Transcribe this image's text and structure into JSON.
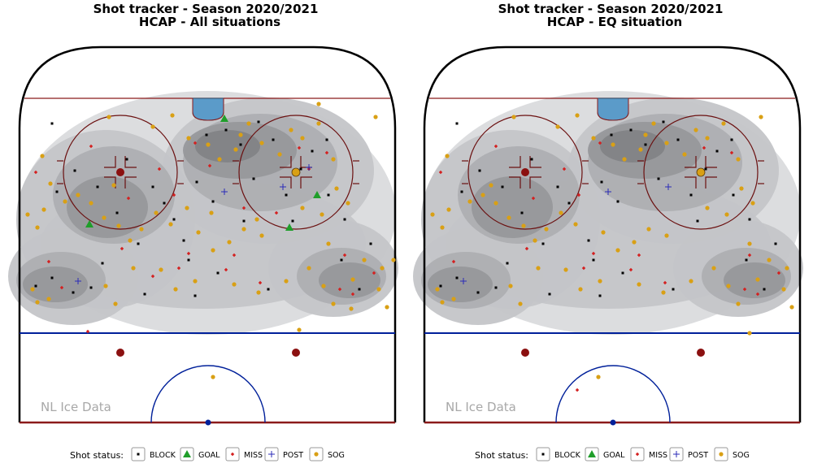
{
  "chart_data": [
    {
      "type": "scatter",
      "title_line1": "Shot tracker  -  Season 2020/2021",
      "title_line2": "HCAP  -  All situations",
      "watermark": "NL Ice Data",
      "series": [
        {
          "name": "BLOCK",
          "points": [
            [
              64,
              152
            ],
            [
              120,
              230
            ],
            [
              144,
              262
            ],
            [
              170,
              300
            ],
            [
              226,
              296
            ],
            [
              242,
              224
            ],
            [
              254,
              166
            ],
            [
              278,
              160
            ],
            [
              296,
              178
            ],
            [
              318,
              150
            ],
            [
              336,
              172
            ],
            [
              352,
              240
            ],
            [
              370,
              208
            ],
            [
              384,
              186
            ],
            [
              402,
              172
            ],
            [
              420,
              320
            ],
            [
              442,
              356
            ],
            [
              456,
              300
            ],
            [
              64,
              342
            ],
            [
              90,
              360
            ],
            [
              44,
              352
            ],
            [
              126,
              324
            ],
            [
              112,
              354
            ],
            [
              178,
              362
            ],
            [
              232,
              320
            ],
            [
              262,
              248
            ],
            [
              312,
              220
            ],
            [
              268,
              336
            ],
            [
              240,
              364
            ],
            [
              360,
              272
            ],
            [
              404,
              240
            ],
            [
              424,
              270
            ],
            [
              92,
              210
            ],
            [
              70,
              236
            ],
            [
              188,
              230
            ],
            [
              202,
              250
            ],
            [
              156,
              196
            ],
            [
              330,
              356
            ],
            [
              300,
              272
            ],
            [
              214,
              270
            ]
          ]
        },
        {
          "name": "GOAL",
          "points": [
            [
              276,
              146
            ],
            [
              390,
              240
            ],
            [
              356,
              280
            ],
            [
              110,
              276
            ]
          ]
        },
        {
          "name": "MISS",
          "points": [
            [
              44,
              212
            ],
            [
              112,
              180
            ],
            [
              158,
              244
            ],
            [
              196,
              208
            ],
            [
              214,
              240
            ],
            [
              232,
              312
            ],
            [
              220,
              330
            ],
            [
              278,
              332
            ],
            [
              288,
              314
            ],
            [
              150,
              306
            ],
            [
              320,
              348
            ],
            [
              402,
              188
            ],
            [
              418,
              356
            ],
            [
              434,
              362
            ],
            [
              460,
              336
            ],
            [
              424,
              314
            ],
            [
              108,
              408
            ],
            [
              368,
              182
            ],
            [
              240,
              176
            ],
            [
              60,
              322
            ],
            [
              380,
              208
            ],
            [
              300,
              256
            ],
            [
              188,
              340
            ],
            [
              76,
              354
            ],
            [
              340,
              262
            ],
            [
              258,
              204
            ]
          ]
        },
        {
          "name": "POST",
          "points": [
            [
              380,
              206
            ],
            [
              348,
              230
            ],
            [
              276,
              236
            ],
            [
              96,
              346
            ]
          ]
        },
        {
          "name": "SOG",
          "points": [
            [
              134,
              144
            ],
            [
              188,
              156
            ],
            [
              212,
              142
            ],
            [
              232,
              170
            ],
            [
              256,
              178
            ],
            [
              270,
              196
            ],
            [
              290,
              184
            ],
            [
              296,
              166
            ],
            [
              306,
              152
            ],
            [
              322,
              176
            ],
            [
              344,
              190
            ],
            [
              358,
              160
            ],
            [
              372,
              170
            ],
            [
              392,
              152
            ],
            [
              410,
              196
            ],
            [
              414,
              232
            ],
            [
              428,
              250
            ],
            [
              396,
              264
            ],
            [
              372,
              256
            ],
            [
              322,
              290
            ],
            [
              300,
              282
            ],
            [
              282,
              298
            ],
            [
              262,
              308
            ],
            [
              244,
              286
            ],
            [
              210,
              276
            ],
            [
              192,
              262
            ],
            [
              174,
              282
            ],
            [
              160,
              296
            ],
            [
              146,
              278
            ],
            [
              128,
              268
            ],
            [
              112,
              250
            ],
            [
              96,
              240
            ],
            [
              80,
              248
            ],
            [
              54,
              258
            ],
            [
              34,
              264
            ],
            [
              46,
              280
            ],
            [
              52,
              192
            ],
            [
              164,
              330
            ],
            [
              198,
              332
            ],
            [
              216,
              356
            ],
            [
              240,
              346
            ],
            [
              288,
              350
            ],
            [
              318,
              360
            ],
            [
              352,
              346
            ],
            [
              380,
              330
            ],
            [
              398,
              352
            ],
            [
              410,
              374
            ],
            [
              434,
              344
            ],
            [
              448,
              320
            ],
            [
              470,
              330
            ],
            [
              466,
              356
            ],
            [
              476,
              378
            ],
            [
              484,
              320
            ],
            [
              432,
              380
            ],
            [
              40,
              356
            ],
            [
              46,
              372
            ],
            [
              60,
              368
            ],
            [
              130,
              352
            ],
            [
              142,
              374
            ],
            [
              262,
              464
            ],
            [
              368,
              406
            ],
            [
              462,
              144
            ],
            [
              392,
              128
            ],
            [
              260,
              262
            ],
            [
              140,
              228
            ],
            [
              62,
              226
            ],
            [
              316,
              270
            ],
            [
              404,
              300
            ],
            [
              230,
              256
            ]
          ]
        }
      ]
    },
    {
      "type": "scatter",
      "title_line1": "Shot tracker  -  Season 2020/2021",
      "title_line2": "HCAP  -  EQ situation",
      "watermark": "NL Ice Data",
      "series": [
        {
          "name": "BLOCK",
          "points": [
            [
              64,
              152
            ],
            [
              120,
              230
            ],
            [
              144,
              262
            ],
            [
              170,
              300
            ],
            [
              226,
              296
            ],
            [
              242,
              224
            ],
            [
              254,
              166
            ],
            [
              278,
              160
            ],
            [
              296,
              178
            ],
            [
              318,
              150
            ],
            [
              336,
              172
            ],
            [
              352,
              240
            ],
            [
              370,
              208
            ],
            [
              384,
              186
            ],
            [
              402,
              172
            ],
            [
              420,
              320
            ],
            [
              442,
              356
            ],
            [
              456,
              300
            ],
            [
              64,
              342
            ],
            [
              90,
              360
            ],
            [
              44,
              352
            ],
            [
              126,
              324
            ],
            [
              112,
              354
            ],
            [
              178,
              362
            ],
            [
              232,
              320
            ],
            [
              262,
              248
            ],
            [
              312,
              220
            ],
            [
              268,
              336
            ],
            [
              240,
              364
            ],
            [
              360,
              272
            ],
            [
              404,
              240
            ],
            [
              424,
              270
            ],
            [
              92,
              210
            ],
            [
              70,
              236
            ],
            [
              188,
              230
            ],
            [
              202,
              250
            ],
            [
              156,
              196
            ],
            [
              330,
              356
            ]
          ]
        },
        {
          "name": "GOAL",
          "points": []
        },
        {
          "name": "MISS",
          "points": [
            [
              44,
              212
            ],
            [
              112,
              180
            ],
            [
              158,
              244
            ],
            [
              196,
              208
            ],
            [
              214,
              240
            ],
            [
              232,
              312
            ],
            [
              220,
              330
            ],
            [
              278,
              332
            ],
            [
              288,
              314
            ],
            [
              150,
              306
            ],
            [
              320,
              348
            ],
            [
              402,
              188
            ],
            [
              418,
              356
            ],
            [
              434,
              362
            ],
            [
              460,
              336
            ],
            [
              424,
              314
            ],
            [
              368,
              182
            ],
            [
              240,
              176
            ],
            [
              60,
              322
            ],
            [
              212,
              480
            ]
          ]
        },
        {
          "name": "POST",
          "points": [
            [
              250,
              236
            ],
            [
              324,
              230
            ],
            [
              72,
              346
            ]
          ]
        },
        {
          "name": "SOG",
          "points": [
            [
              134,
              144
            ],
            [
              188,
              156
            ],
            [
              212,
              142
            ],
            [
              232,
              170
            ],
            [
              256,
              178
            ],
            [
              270,
              196
            ],
            [
              290,
              184
            ],
            [
              296,
              166
            ],
            [
              306,
              152
            ],
            [
              322,
              176
            ],
            [
              344,
              190
            ],
            [
              358,
              160
            ],
            [
              372,
              170
            ],
            [
              392,
              152
            ],
            [
              410,
              196
            ],
            [
              414,
              232
            ],
            [
              428,
              250
            ],
            [
              396,
              264
            ],
            [
              372,
              256
            ],
            [
              322,
              290
            ],
            [
              300,
              282
            ],
            [
              282,
              298
            ],
            [
              262,
              308
            ],
            [
              244,
              286
            ],
            [
              210,
              276
            ],
            [
              192,
              262
            ],
            [
              174,
              282
            ],
            [
              160,
              296
            ],
            [
              146,
              278
            ],
            [
              128,
              268
            ],
            [
              112,
              250
            ],
            [
              96,
              240
            ],
            [
              80,
              248
            ],
            [
              54,
              258
            ],
            [
              34,
              264
            ],
            [
              46,
              280
            ],
            [
              52,
              192
            ],
            [
              164,
              330
            ],
            [
              198,
              332
            ],
            [
              216,
              356
            ],
            [
              240,
              346
            ],
            [
              288,
              350
            ],
            [
              318,
              360
            ],
            [
              352,
              346
            ],
            [
              380,
              330
            ],
            [
              398,
              352
            ],
            [
              410,
              374
            ],
            [
              434,
              344
            ],
            [
              448,
              320
            ],
            [
              470,
              330
            ],
            [
              466,
              356
            ],
            [
              476,
              378
            ],
            [
              40,
              356
            ],
            [
              46,
              372
            ],
            [
              60,
              368
            ],
            [
              130,
              352
            ],
            [
              142,
              374
            ],
            [
              238,
              464
            ],
            [
              424,
              410
            ],
            [
              438,
              144
            ],
            [
              424,
              300
            ],
            [
              106,
              228
            ]
          ]
        }
      ]
    }
  ],
  "legend": {
    "title": "Shot status:",
    "items": [
      {
        "name": "BLOCK",
        "color": "#000000"
      },
      {
        "name": "GOAL",
        "color": "#1f9e2a"
      },
      {
        "name": "MISS",
        "color": "#d42020"
      },
      {
        "name": "POST",
        "color": "#2b2bb8"
      },
      {
        "name": "SOG",
        "color": "#d9a015"
      }
    ]
  },
  "colors": {
    "board": "#000000",
    "goal_line": "#8b1a1a",
    "blue_line": "#00209a",
    "crease": "#5b9bc9",
    "dot": "#8b1010",
    "density_shades": [
      "#dadbdd",
      "#c4c5c8",
      "#aeafb2",
      "#97989b",
      "#828386"
    ]
  }
}
